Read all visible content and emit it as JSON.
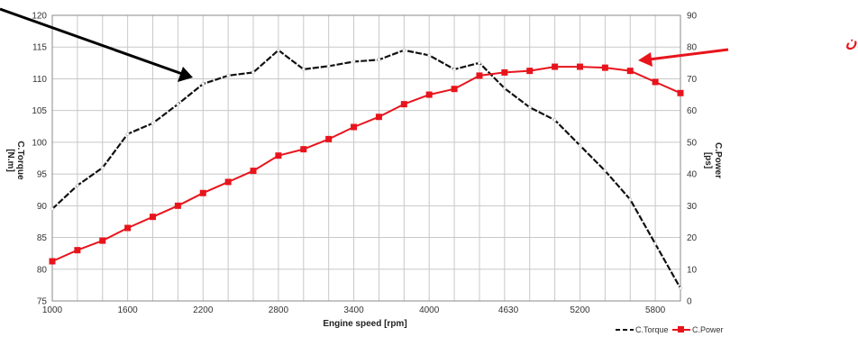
{
  "chart_data": {
    "type": "line",
    "xlabel": "Engine speed [rpm]",
    "y_left_label": [
      "C.Torque",
      "[N.m]"
    ],
    "y_right_label": [
      "C.Power",
      "[ps]"
    ],
    "xlim": [
      1000,
      6000
    ],
    "ylim_left": [
      75,
      120
    ],
    "ylim_right": [
      0,
      90
    ],
    "x_ticks": [
      1000,
      1600,
      2200,
      2800,
      3400,
      4000,
      4630,
      5200,
      5800
    ],
    "y_left_ticks": [
      75,
      80,
      85,
      90,
      95,
      100,
      105,
      110,
      115,
      120
    ],
    "y_right_ticks": [
      0,
      10,
      20,
      30,
      40,
      50,
      60,
      70,
      80,
      90
    ],
    "grid": true,
    "legend_position": "bottom-right",
    "annotation": "نمودار توان",
    "series": [
      {
        "name": "C.Torque",
        "axis": "left",
        "color": "#111111",
        "style": "dashed",
        "x": [
          1000,
          1200,
          1400,
          1600,
          1800,
          2000,
          2200,
          2400,
          2600,
          2800,
          3000,
          3200,
          3400,
          3600,
          3800,
          4000,
          4200,
          4400,
          4600,
          4800,
          5000,
          5200,
          5400,
          5600,
          5800,
          6000
        ],
        "y": [
          89.5,
          93.2,
          96.0,
          101.3,
          103.0,
          106.0,
          109.2,
          110.5,
          111.0,
          114.5,
          111.5,
          112.0,
          112.7,
          113.0,
          114.5,
          113.7,
          111.5,
          112.5,
          108.5,
          105.5,
          103.5,
          99.5,
          95.5,
          91.0,
          84.0,
          77.0
        ]
      },
      {
        "name": "C.Power",
        "axis": "right",
        "color": "#e8141c",
        "style": "solid",
        "x": [
          1000,
          1200,
          1400,
          1600,
          1800,
          2000,
          2200,
          2400,
          2600,
          2800,
          3000,
          3200,
          3400,
          3600,
          3800,
          4000,
          4200,
          4400,
          4600,
          4800,
          5000,
          5200,
          5400,
          5600,
          5800,
          6000
        ],
        "y": [
          12.5,
          16.0,
          19.0,
          23.0,
          26.5,
          30.0,
          34.0,
          37.5,
          41.0,
          45.8,
          47.8,
          51.0,
          54.8,
          58.0,
          62.0,
          65.0,
          66.8,
          71.0,
          72.0,
          72.5,
          73.8,
          73.8,
          73.5,
          72.5,
          69.0,
          65.5
        ]
      }
    ]
  }
}
